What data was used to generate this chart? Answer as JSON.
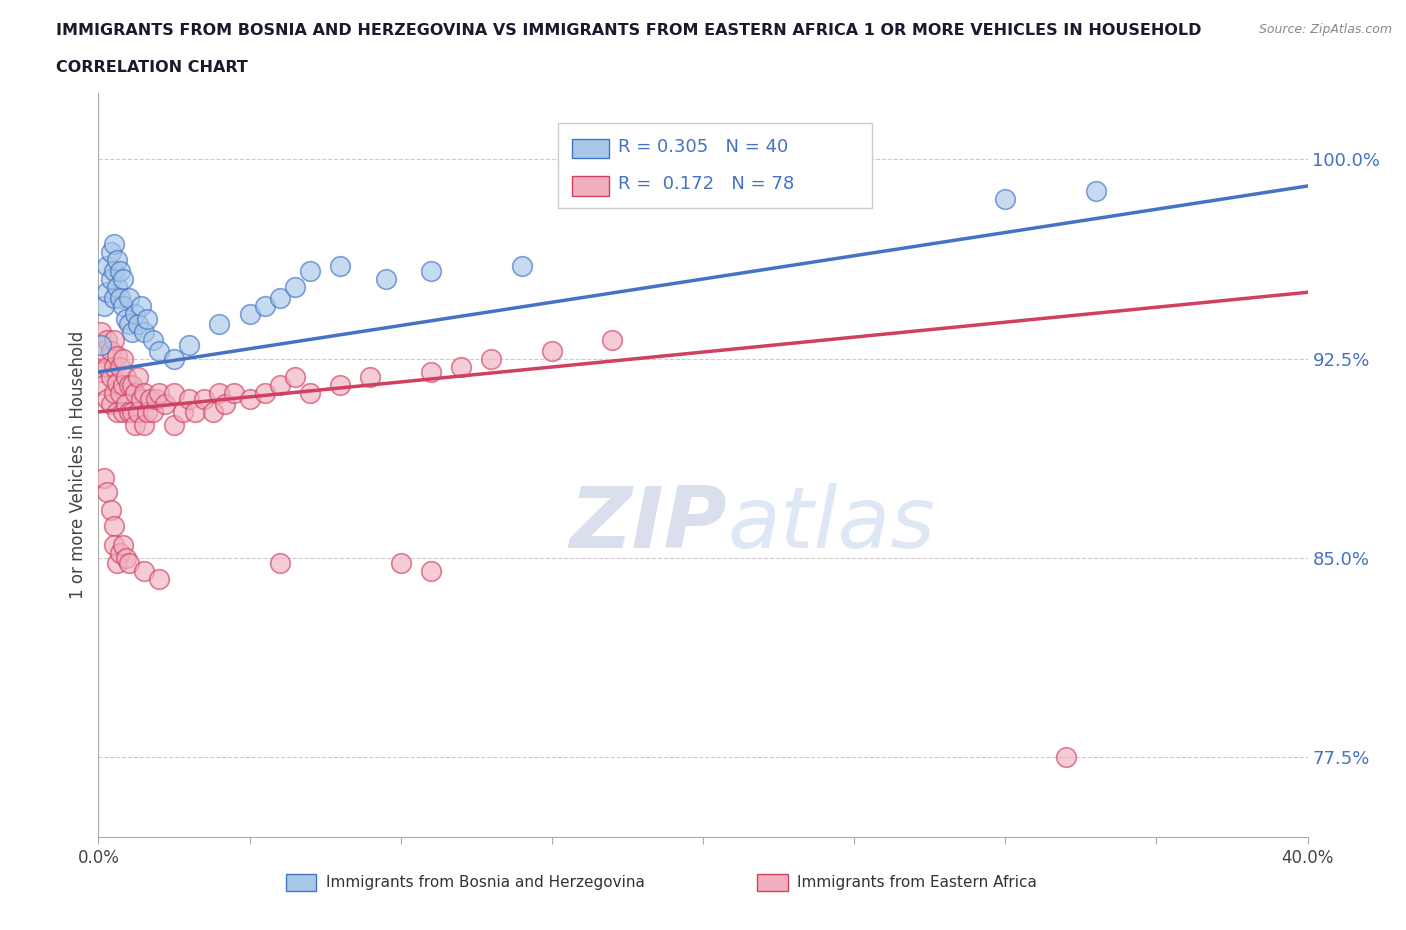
{
  "title_line1": "IMMIGRANTS FROM BOSNIA AND HERZEGOVINA VS IMMIGRANTS FROM EASTERN AFRICA 1 OR MORE VEHICLES IN HOUSEHOLD",
  "title_line2": "CORRELATION CHART",
  "source_text": "Source: ZipAtlas.com",
  "ylabel": "1 or more Vehicles in Household",
  "xlabel_bosnia": "Immigrants from Bosnia and Herzegovina",
  "xlabel_eastafrica": "Immigrants from Eastern Africa",
  "xlim": [
    0.0,
    0.4
  ],
  "ylim": [
    0.745,
    1.025
  ],
  "yticks": [
    0.775,
    0.85,
    0.925,
    1.0
  ],
  "ytick_labels": [
    "77.5%",
    "85.0%",
    "92.5%",
    "100.0%"
  ],
  "xticks": [
    0.0,
    0.05,
    0.1,
    0.15,
    0.2,
    0.25,
    0.3,
    0.35,
    0.4
  ],
  "xtick_labels": [
    "0.0%",
    "",
    "",
    "",
    "",
    "",
    "",
    "",
    "40.0%"
  ],
  "R_bosnia": 0.305,
  "N_bosnia": 40,
  "R_eastafrica": 0.172,
  "N_eastafrica": 78,
  "color_bosnia": "#A8C8E8",
  "color_eastafrica": "#F0B0C0",
  "color_bosnia_line": "#4472C4",
  "color_eastafrica_line": "#D04060",
  "background_color": "#ffffff",
  "watermark_color": "#D0D8E8",
  "bosnia_x": [
    0.001,
    0.002,
    0.003,
    0.003,
    0.004,
    0.004,
    0.005,
    0.005,
    0.005,
    0.006,
    0.006,
    0.007,
    0.007,
    0.008,
    0.008,
    0.009,
    0.01,
    0.01,
    0.011,
    0.012,
    0.013,
    0.014,
    0.015,
    0.016,
    0.018,
    0.02,
    0.025,
    0.03,
    0.04,
    0.05,
    0.055,
    0.06,
    0.065,
    0.07,
    0.08,
    0.095,
    0.11,
    0.14,
    0.3,
    0.33
  ],
  "bosnia_y": [
    0.93,
    0.945,
    0.95,
    0.96,
    0.955,
    0.965,
    0.948,
    0.958,
    0.968,
    0.952,
    0.962,
    0.948,
    0.958,
    0.945,
    0.955,
    0.94,
    0.938,
    0.948,
    0.935,
    0.942,
    0.938,
    0.945,
    0.935,
    0.94,
    0.932,
    0.928,
    0.925,
    0.93,
    0.938,
    0.942,
    0.945,
    0.948,
    0.952,
    0.958,
    0.96,
    0.955,
    0.958,
    0.96,
    0.985,
    0.988
  ],
  "eastafrica_x": [
    0.001,
    0.001,
    0.002,
    0.002,
    0.003,
    0.003,
    0.003,
    0.004,
    0.004,
    0.004,
    0.005,
    0.005,
    0.005,
    0.006,
    0.006,
    0.006,
    0.007,
    0.007,
    0.008,
    0.008,
    0.008,
    0.009,
    0.009,
    0.01,
    0.01,
    0.011,
    0.011,
    0.012,
    0.012,
    0.013,
    0.013,
    0.014,
    0.015,
    0.015,
    0.016,
    0.017,
    0.018,
    0.019,
    0.02,
    0.022,
    0.025,
    0.025,
    0.028,
    0.03,
    0.032,
    0.035,
    0.038,
    0.04,
    0.042,
    0.045,
    0.05,
    0.055,
    0.06,
    0.065,
    0.07,
    0.08,
    0.09,
    0.1,
    0.11,
    0.12,
    0.13,
    0.15,
    0.17,
    0.002,
    0.003,
    0.004,
    0.005,
    0.005,
    0.006,
    0.007,
    0.008,
    0.009,
    0.01,
    0.015,
    0.02,
    0.06,
    0.11,
    0.32
  ],
  "eastafrica_y": [
    0.92,
    0.935,
    0.915,
    0.928,
    0.91,
    0.922,
    0.932,
    0.908,
    0.918,
    0.928,
    0.912,
    0.922,
    0.932,
    0.905,
    0.916,
    0.926,
    0.912,
    0.922,
    0.905,
    0.915,
    0.925,
    0.908,
    0.918,
    0.905,
    0.915,
    0.905,
    0.915,
    0.9,
    0.912,
    0.905,
    0.918,
    0.91,
    0.9,
    0.912,
    0.905,
    0.91,
    0.905,
    0.91,
    0.912,
    0.908,
    0.9,
    0.912,
    0.905,
    0.91,
    0.905,
    0.91,
    0.905,
    0.912,
    0.908,
    0.912,
    0.91,
    0.912,
    0.915,
    0.918,
    0.912,
    0.915,
    0.918,
    0.848,
    0.92,
    0.922,
    0.925,
    0.928,
    0.932,
    0.88,
    0.875,
    0.868,
    0.862,
    0.855,
    0.848,
    0.852,
    0.855,
    0.85,
    0.848,
    0.845,
    0.842,
    0.848,
    0.845,
    0.775
  ],
  "bosnia_trend_x": [
    0.0,
    0.4
  ],
  "bosnia_trend_y": [
    0.92,
    0.99
  ],
  "eastafrica_trend_x": [
    0.0,
    0.4
  ],
  "eastafrica_trend_y": [
    0.905,
    0.95
  ]
}
